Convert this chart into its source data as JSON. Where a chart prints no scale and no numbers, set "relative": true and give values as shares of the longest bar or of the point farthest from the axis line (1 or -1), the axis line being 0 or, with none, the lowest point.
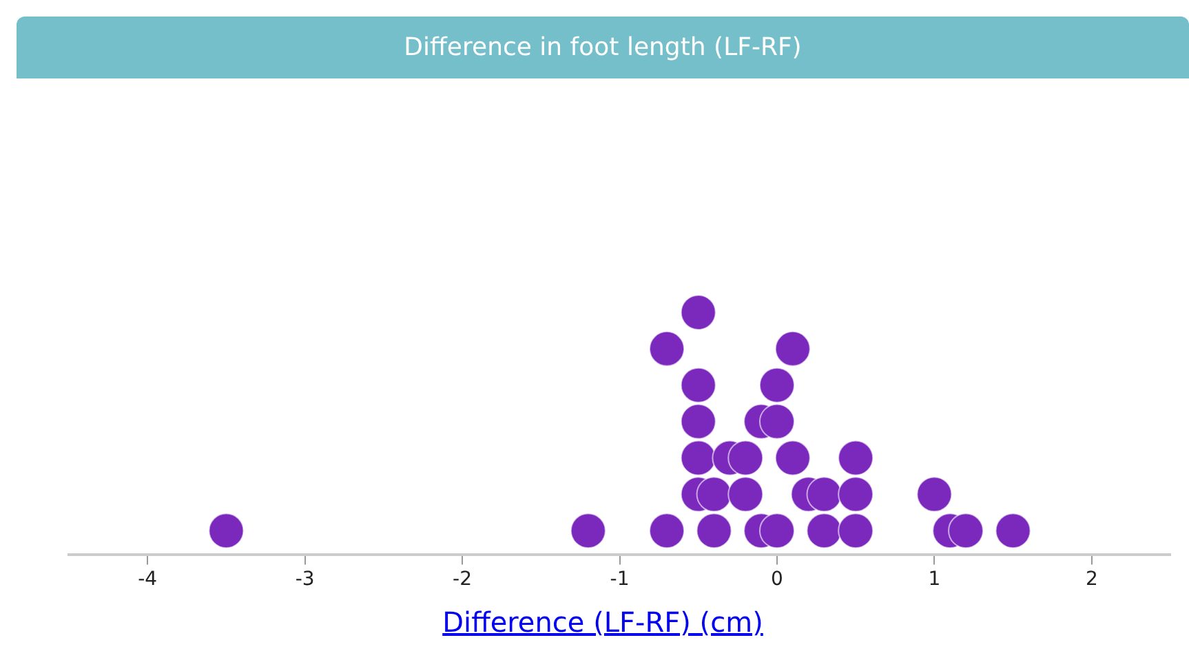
{
  "chart_data": {
    "type": "scatter",
    "title": "Difference in foot length (LF-RF)",
    "xlabel": "Difference (LF-RF) (cm)",
    "relative": true,
    "marker": "circle",
    "xlim": [
      -4.5,
      2.5
    ],
    "xticks": [
      -4,
      -3,
      -2,
      -1,
      0,
      1,
      2
    ],
    "series": [
      {
        "color": "#7b28bd",
        "x": [
          -3.5,
          -1.2,
          -0.7,
          -0.4,
          -0.1,
          0.0,
          0.3,
          0.5,
          1.1,
          1.2,
          1.5,
          -0.5,
          -0.4,
          -0.2,
          0.2,
          0.3,
          0.5,
          1.0,
          -0.5,
          -0.3,
          -0.2,
          0.1,
          0.5,
          -0.5,
          -0.1,
          0.0,
          -0.5,
          0.0,
          -0.7,
          0.1,
          -0.5
        ],
        "values": [
          0.1,
          0.1,
          0.1,
          0.1,
          0.1,
          0.1,
          0.1,
          0.1,
          0.1,
          0.1,
          0.1,
          0.25,
          0.25,
          0.25,
          0.25,
          0.25,
          0.25,
          0.25,
          0.4,
          0.4,
          0.4,
          0.4,
          0.4,
          0.55,
          0.55,
          0.55,
          0.7,
          0.7,
          0.85,
          0.85,
          1
        ]
      }
    ]
  }
}
